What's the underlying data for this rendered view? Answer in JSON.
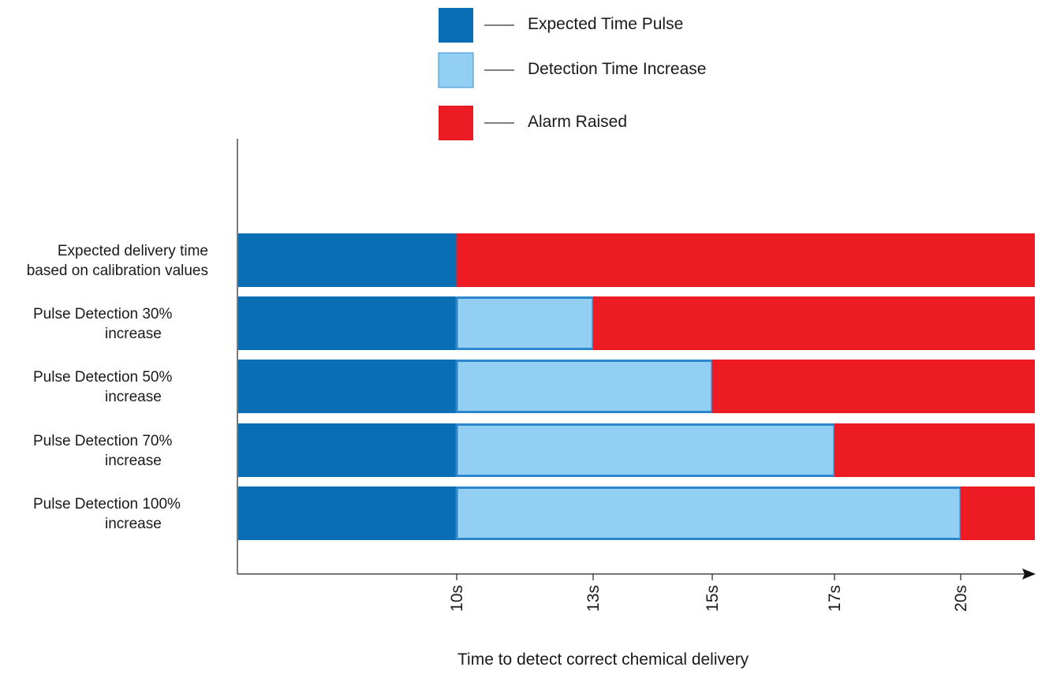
{
  "chart_data": {
    "type": "bar",
    "orientation": "horizontal-stacked-timeline",
    "title": "",
    "xlabel": "Time to detect correct chemical delivery",
    "ylabel": "",
    "x_tick_labels": [
      "10s",
      "13s",
      "15s",
      "17s",
      "20s"
    ],
    "x_range_seconds": [
      5,
      21.8
    ],
    "grid": false,
    "legend_placement": "top-center",
    "legend": [
      {
        "name": "Expected Time Pulse",
        "color": "#0a6eb5"
      },
      {
        "name": "Detection Time Increase",
        "color": "#92cff3"
      },
      {
        "name": "Alarm Raised",
        "color": "#ed1c24"
      }
    ],
    "categories": [
      {
        "lines": [
          "Expected delivery time",
          "based on calibration values"
        ],
        "expected_end_s": 10,
        "alarm_at_s": 10
      },
      {
        "lines": [
          "Pulse Detection 30%",
          "increase"
        ],
        "expected_end_s": 10,
        "alarm_at_s": 13
      },
      {
        "lines": [
          "Pulse Detection 50%",
          "increase"
        ],
        "expected_end_s": 10,
        "alarm_at_s": 15
      },
      {
        "lines": [
          "Pulse Detection 70%",
          "increase"
        ],
        "expected_end_s": 10,
        "alarm_at_s": 17
      },
      {
        "lines": [
          "Pulse Detection 100%",
          "increase"
        ],
        "expected_end_s": 10,
        "alarm_at_s": 20
      }
    ]
  }
}
